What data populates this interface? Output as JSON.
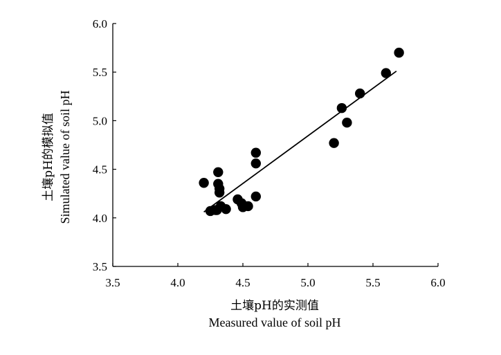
{
  "chart_data": {
    "type": "scatter",
    "xlabel_cn": "土壤pH的实测值",
    "xlabel_en": "Measured value of soil pH",
    "ylabel_cn": "土壤pH的模拟值",
    "ylabel_en": "Simulated value of soil pH",
    "xlim": [
      3.5,
      6.0
    ],
    "ylim": [
      3.5,
      6.0
    ],
    "xticks": [
      "3.5",
      "4.0",
      "4.5",
      "5.0",
      "5.5",
      "6.0"
    ],
    "yticks": [
      "3.5",
      "4.0",
      "4.5",
      "5.0",
      "5.5",
      "6.0"
    ],
    "grid": false,
    "points": [
      {
        "x": 4.2,
        "y": 4.36
      },
      {
        "x": 4.25,
        "y": 4.07
      },
      {
        "x": 4.29,
        "y": 4.08
      },
      {
        "x": 4.3,
        "y": 4.08
      },
      {
        "x": 4.31,
        "y": 4.47
      },
      {
        "x": 4.31,
        "y": 4.35
      },
      {
        "x": 4.32,
        "y": 4.3
      },
      {
        "x": 4.32,
        "y": 4.26
      },
      {
        "x": 4.33,
        "y": 4.12
      },
      {
        "x": 4.37,
        "y": 4.09
      },
      {
        "x": 4.46,
        "y": 4.19
      },
      {
        "x": 4.49,
        "y": 4.15
      },
      {
        "x": 4.5,
        "y": 4.11
      },
      {
        "x": 4.54,
        "y": 4.12
      },
      {
        "x": 4.6,
        "y": 4.67
      },
      {
        "x": 4.6,
        "y": 4.56
      },
      {
        "x": 4.6,
        "y": 4.22
      },
      {
        "x": 5.2,
        "y": 4.77
      },
      {
        "x": 5.26,
        "y": 5.13
      },
      {
        "x": 5.3,
        "y": 4.98
      },
      {
        "x": 5.4,
        "y": 5.28
      },
      {
        "x": 5.6,
        "y": 5.49
      },
      {
        "x": 5.7,
        "y": 5.7
      }
    ],
    "trendline": {
      "x": [
        4.2,
        5.68
      ],
      "y": [
        4.06,
        5.51
      ]
    },
    "colors": {
      "points": "#000000",
      "line": "#000000",
      "axis": "#000000"
    }
  }
}
